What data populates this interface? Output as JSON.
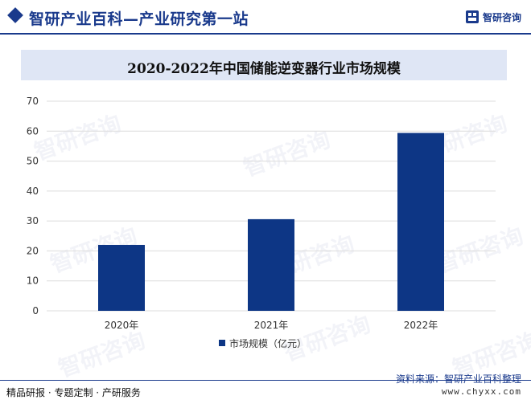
{
  "header": {
    "title": "智研产业百科—产业研究第一站",
    "brand_name": "智研咨询"
  },
  "watermark_text": "智研咨询",
  "chart_data": {
    "type": "bar",
    "title": "2020-2022年中国储能逆变器行业市场规模",
    "categories": [
      "2020年",
      "2021年",
      "2022年"
    ],
    "series": [
      {
        "name": "市场规模（亿元）",
        "values": [
          22,
          30.6,
          59.4
        ]
      }
    ],
    "ylim": [
      0,
      70
    ],
    "yticks": [
      0,
      10,
      20,
      30,
      40,
      50,
      60,
      70
    ],
    "grid": true,
    "legend": "bottom-center",
    "bar_color": "#0d3685"
  },
  "footer": {
    "left": "精品研报 · 专题定制 · 产研服务",
    "source": "资料来源：智研产业百科整理",
    "url": "www.chyxx.com"
  }
}
